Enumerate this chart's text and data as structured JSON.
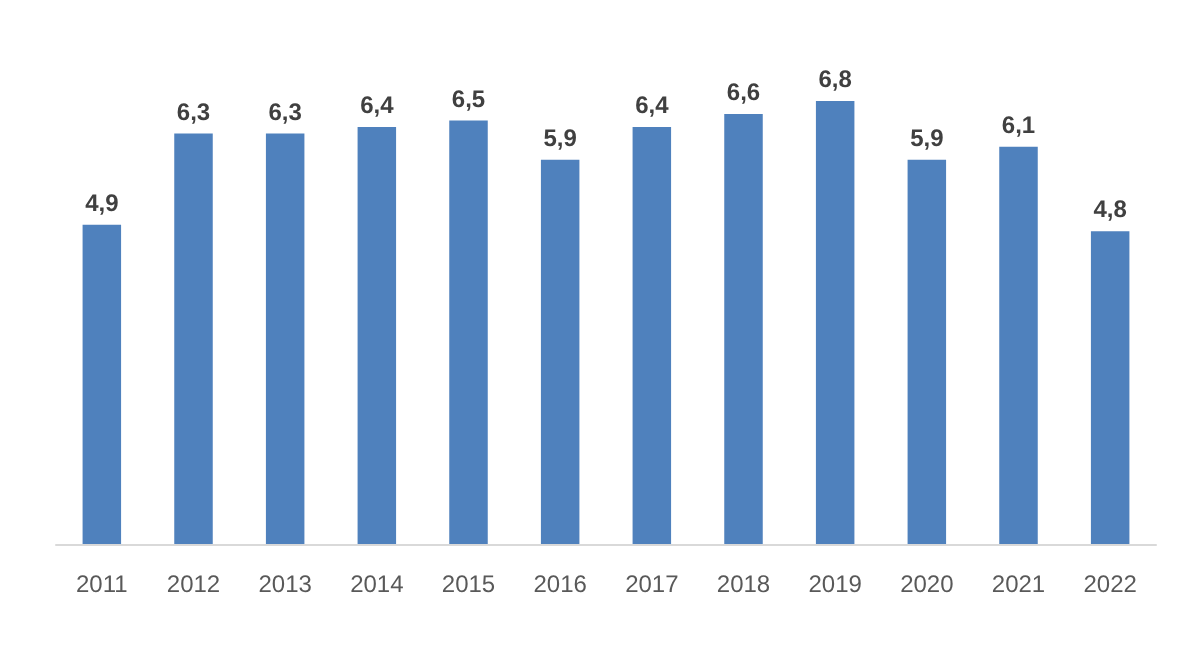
{
  "chart_data": {
    "type": "bar",
    "categories": [
      "2011",
      "2012",
      "2013",
      "2014",
      "2015",
      "2016",
      "2017",
      "2018",
      "2019",
      "2020",
      "2021",
      "2022"
    ],
    "values": [
      4.9,
      6.3,
      6.3,
      6.4,
      6.5,
      5.9,
      6.4,
      6.6,
      6.8,
      5.9,
      6.1,
      4.8
    ],
    "value_labels": [
      "4,9",
      "6,3",
      "6,3",
      "6,4",
      "6,5",
      "5,9",
      "6,4",
      "6,6",
      "6,8",
      "5,9",
      "6,1",
      "4,8"
    ],
    "color": "#4f81bd"
  }
}
